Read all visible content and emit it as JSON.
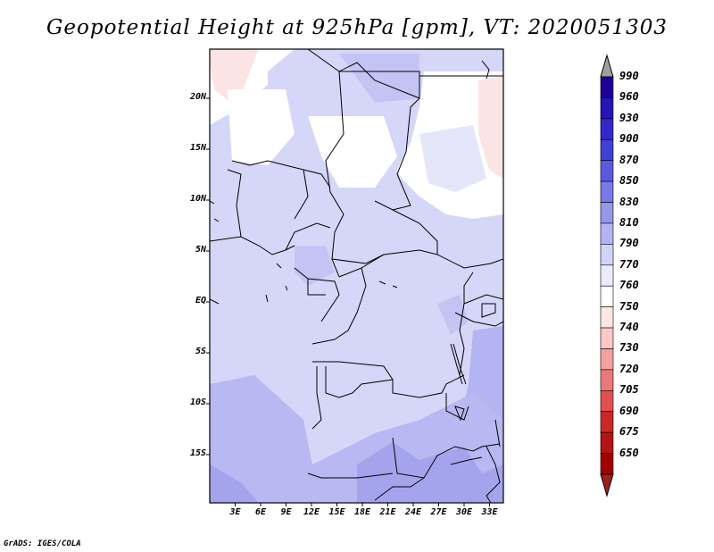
{
  "title": "Geopotential Height at 925hPa [gpm], VT: 2020051303",
  "credit": "GrADS: IGES/COLA",
  "map": {
    "lat_ticks": [
      "20N",
      "15N",
      "10N",
      "5N",
      "EQ",
      "5S",
      "10S",
      "15S"
    ],
    "lon_ticks": [
      "3E",
      "6E",
      "9E",
      "12E",
      "15E",
      "18E",
      "21E",
      "24E",
      "27E",
      "30E",
      "33E"
    ]
  },
  "colorbar": {
    "labels": [
      "990",
      "960",
      "930",
      "900",
      "870",
      "850",
      "830",
      "810",
      "790",
      "770",
      "760",
      "750",
      "740",
      "730",
      "720",
      "705",
      "690",
      "675",
      "650"
    ],
    "colors": [
      "#1e0096",
      "#2814b4",
      "#3228c8",
      "#4040d2",
      "#5a5adc",
      "#7878e6",
      "#9696eb",
      "#b4b4f5",
      "#d2d2fa",
      "#ebebfd",
      "#ffffff",
      "#ffe6e6",
      "#ffc8c8",
      "#f5a0a0",
      "#eb7878",
      "#e05050",
      "#c82828",
      "#b41414",
      "#a00000"
    ],
    "top_arrow_color": "#a0a0a0",
    "bottom_arrow_color": "#a01e1e"
  }
}
